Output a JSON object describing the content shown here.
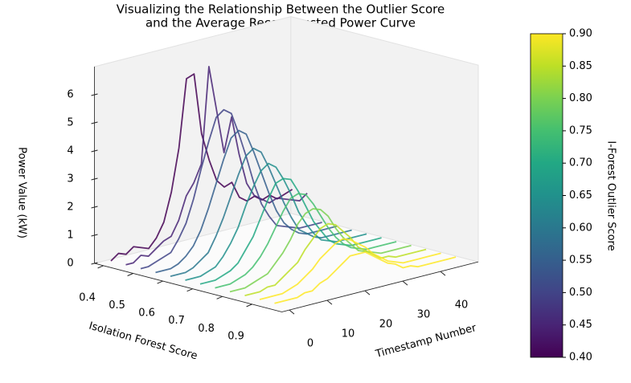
{
  "chart_data": {
    "type": "waterfall3d",
    "title": [
      "Visualizing the Relationship Between the Outlier Score",
      "and the Average Reconstructed Power Curve"
    ],
    "x_label": "Timestamp Number",
    "y_label": "Isolation Forest Score",
    "z_label": "Power Value (kW)",
    "colorbar_label": "I-Forest Outlier Score",
    "x": [
      0,
      2,
      4,
      6,
      8,
      10,
      12,
      14,
      16,
      18,
      20,
      22,
      24,
      26,
      28,
      30,
      32,
      34,
      36,
      38,
      40,
      42,
      44,
      46,
      48
    ],
    "xlim": [
      -2,
      50
    ],
    "xticks": [
      0,
      10,
      20,
      30,
      40
    ],
    "ylim": [
      0.37,
      1.0
    ],
    "yticks": [
      0.4,
      0.5,
      0.6,
      0.7,
      0.8,
      0.9
    ],
    "zlim": [
      0,
      7
    ],
    "zticks": [
      0,
      1,
      2,
      3,
      4,
      5,
      6
    ],
    "clim": [
      0.4,
      0.9
    ],
    "cticks": [
      {
        "value": 0.4,
        "label": "0.40"
      },
      {
        "value": 0.45,
        "label": "0.45"
      },
      {
        "value": 0.5,
        "label": "0.50"
      },
      {
        "value": 0.55,
        "label": "0.55"
      },
      {
        "value": 0.6,
        "label": "0.60"
      },
      {
        "value": 0.65,
        "label": "0.65"
      },
      {
        "value": 0.7,
        "label": "0.70"
      },
      {
        "value": 0.75,
        "label": "0.75"
      },
      {
        "value": 0.8,
        "label": "0.80"
      },
      {
        "value": 0.85,
        "label": "0.85"
      },
      {
        "value": 0.9,
        "label": "0.90"
      }
    ],
    "series": [
      {
        "score": 0.4,
        "color": "#440154",
        "values": [
          0.1,
          0.3,
          0.2,
          0.4,
          0.3,
          0.2,
          0.5,
          1.0,
          2.0,
          3.5,
          5.9,
          6.0,
          3.8,
          2.8,
          2.0,
          1.7,
          1.8,
          1.2,
          1.0,
          1.1,
          0.9,
          1.0,
          0.8,
          0.9,
          1.0
        ]
      },
      {
        "score": 0.45,
        "color": "#482475",
        "values": [
          0.1,
          0.1,
          0.3,
          0.2,
          0.4,
          0.6,
          0.7,
          1.2,
          2.0,
          2.4,
          3.0,
          6.4,
          4.8,
          3.2,
          4.4,
          3.0,
          1.9,
          1.4,
          1.2,
          1.0,
          1.1,
          1.0,
          0.9,
          0.8,
          1.0
        ]
      },
      {
        "score": 0.5,
        "color": "#414487",
        "values": [
          0.1,
          0.1,
          0.2,
          0.3,
          0.4,
          0.8,
          1.3,
          2.1,
          3.1,
          4.0,
          4.8,
          5.0,
          4.8,
          4.0,
          3.1,
          2.1,
          1.3,
          0.8,
          0.4,
          0.3,
          0.2,
          0.1,
          0.1,
          0.1,
          0.1
        ]
      },
      {
        "score": 0.55,
        "color": "#355f8d",
        "values": [
          0.1,
          0.1,
          0.1,
          0.2,
          0.4,
          0.7,
          1.2,
          1.9,
          2.7,
          3.5,
          4.2,
          4.4,
          4.2,
          3.5,
          2.7,
          1.9,
          1.2,
          0.7,
          0.4,
          0.2,
          0.1,
          0.1,
          0.1,
          0.1,
          0.1
        ]
      },
      {
        "score": 0.6,
        "color": "#2a788e",
        "values": [
          0.1,
          0.1,
          0.1,
          0.2,
          0.4,
          0.6,
          1.1,
          1.7,
          2.4,
          3.1,
          3.7,
          3.9,
          3.7,
          3.1,
          2.4,
          1.7,
          1.1,
          0.6,
          0.4,
          0.2,
          0.1,
          0.1,
          0.1,
          0.1,
          0.1
        ]
      },
      {
        "score": 0.65,
        "color": "#21918c",
        "values": [
          0.1,
          0.1,
          0.1,
          0.2,
          0.3,
          0.6,
          1.0,
          1.5,
          2.2,
          2.8,
          3.3,
          3.5,
          3.3,
          2.8,
          2.2,
          1.5,
          1.0,
          0.6,
          0.3,
          0.2,
          0.1,
          0.1,
          0.1,
          0.1,
          0.1
        ]
      },
      {
        "score": 0.7,
        "color": "#22a884",
        "values": [
          0.1,
          0.1,
          0.1,
          0.2,
          0.3,
          0.5,
          0.9,
          1.3,
          1.9,
          2.5,
          3.0,
          3.1,
          3.0,
          2.5,
          1.9,
          1.3,
          0.9,
          0.5,
          0.3,
          0.2,
          0.1,
          0.1,
          0.1,
          0.1,
          0.1
        ]
      },
      {
        "score": 0.75,
        "color": "#44bf70",
        "values": [
          0.1,
          0.1,
          0.1,
          0.2,
          0.3,
          0.5,
          0.8,
          1.2,
          1.7,
          2.2,
          2.6,
          2.7,
          2.6,
          2.2,
          1.7,
          1.2,
          0.8,
          0.5,
          0.3,
          0.2,
          0.1,
          0.1,
          0.1,
          0.1,
          0.1
        ]
      },
      {
        "score": 0.8,
        "color": "#7ad151",
        "values": [
          0.1,
          0.1,
          0.1,
          0.2,
          0.3,
          0.4,
          0.7,
          1.0,
          1.4,
          1.9,
          2.2,
          2.3,
          2.2,
          1.9,
          1.4,
          1.0,
          0.7,
          0.4,
          0.3,
          0.2,
          0.1,
          0.1,
          0.1,
          0.1,
          0.1
        ]
      },
      {
        "score": 0.85,
        "color": "#bddf26",
        "values": [
          0.1,
          0.1,
          0.1,
          0.2,
          0.2,
          0.4,
          0.6,
          0.8,
          1.2,
          1.5,
          1.8,
          1.9,
          1.8,
          1.5,
          1.2,
          0.8,
          0.6,
          0.4,
          0.2,
          0.2,
          0.1,
          0.1,
          0.1,
          0.1,
          0.1
        ]
      },
      {
        "score": 0.9,
        "color": "#fde725",
        "values": [
          0.1,
          0.1,
          0.1,
          0.1,
          0.2,
          0.3,
          0.5,
          0.7,
          1.0,
          1.2,
          1.4,
          1.5,
          1.4,
          1.2,
          1.0,
          0.7,
          0.5,
          0.3,
          0.2,
          0.1,
          0.1,
          0.1,
          0.1,
          0.1,
          0.1
        ]
      },
      {
        "score": 0.95,
        "color": "#fde725",
        "values": [
          0.1,
          0.1,
          0.1,
          0.1,
          0.2,
          0.2,
          0.4,
          0.5,
          0.7,
          0.9,
          1.1,
          1.1,
          1.1,
          0.9,
          0.7,
          0.5,
          0.4,
          0.2,
          0.2,
          0.1,
          0.1,
          0.1,
          0.1,
          0.1,
          0.1
        ]
      }
    ]
  }
}
